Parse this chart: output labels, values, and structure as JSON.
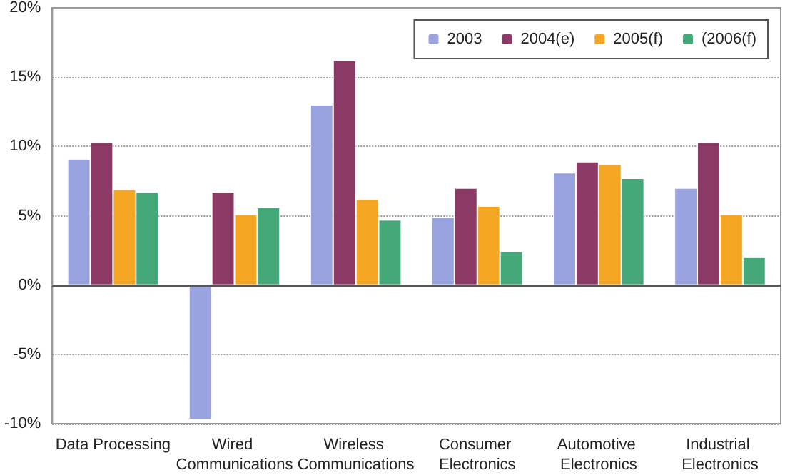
{
  "chart_data": {
    "type": "bar",
    "categories": [
      "Data Processing",
      "Wired Communications",
      "Wireless Communications",
      "Consumer Electronics",
      "Automotive Electronics",
      "Industrial Electronics"
    ],
    "series": [
      {
        "name": "2003",
        "color": "#99a3e0",
        "values": [
          9.1,
          -9.7,
          13.0,
          4.9,
          8.1,
          7.0
        ]
      },
      {
        "name": "2004(e)",
        "color": "#8b3a66",
        "values": [
          10.3,
          6.7,
          16.2,
          7.0,
          8.9,
          10.3
        ]
      },
      {
        "name": "2005(f)",
        "color": "#f5a623",
        "values": [
          6.9,
          5.1,
          6.2,
          5.7,
          8.7,
          5.1
        ]
      },
      {
        "name": "(2006(f)",
        "color": "#44a878",
        "values": [
          6.7,
          5.6,
          4.7,
          2.4,
          7.7,
          2.0
        ]
      }
    ],
    "ylim": [
      -10,
      20
    ],
    "yticks": [
      {
        "value": -10,
        "label": "-10%"
      },
      {
        "value": -5,
        "label": "-5%"
      },
      {
        "value": 0,
        "label": "0%"
      },
      {
        "value": 5,
        "label": "5%"
      },
      {
        "value": 10,
        "label": "10%"
      },
      {
        "value": 15,
        "label": "15%"
      },
      {
        "value": 20,
        "label": "20%"
      }
    ],
    "grid": "y",
    "legend": "top right"
  }
}
